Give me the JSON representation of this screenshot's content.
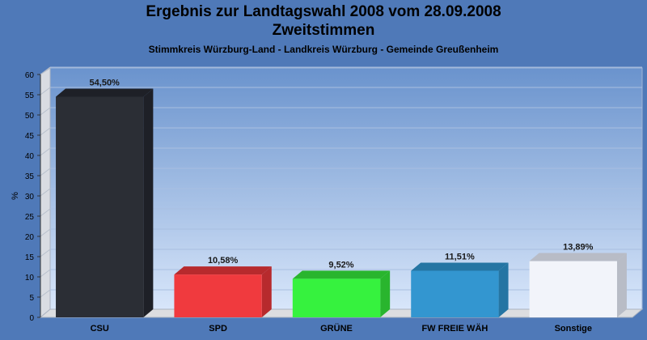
{
  "header": {
    "title": "Ergebnis zur Landtagswahl 2008 vom 28.09.2008",
    "subtitle": "Zweitstimmen",
    "region": "Stimmkreis Würzburg-Land - Landkreis Würzburg - Gemeinde Greußenheim"
  },
  "chart_data": {
    "type": "bar",
    "title": "Ergebnis zur Landtagswahl 2008 vom 28.09.2008",
    "subtitle": "Zweitstimmen",
    "xlabel": "",
    "ylabel": "%",
    "ylim": [
      0,
      60
    ],
    "yticks": [
      0,
      5,
      10,
      15,
      20,
      25,
      30,
      35,
      40,
      45,
      50,
      55,
      60
    ],
    "categories": [
      "CSU",
      "SPD",
      "GRÜNE",
      "FW FREIE WÄH",
      "Sonstige"
    ],
    "values": [
      54.5,
      10.58,
      9.52,
      11.51,
      13.89
    ],
    "value_labels": [
      "54,50%",
      "10,58%",
      "9,52%",
      "11,51%",
      "13,89%"
    ],
    "colors": [
      "#2b2e35",
      "#f03a3e",
      "#36f23e",
      "#3396d0",
      "#f2f4fa"
    ],
    "side_colors": [
      "#1e2027",
      "#b72a2d",
      "#29b52e",
      "#2575a3",
      "#b8bcc6"
    ],
    "grid": true,
    "legend": "none"
  }
}
